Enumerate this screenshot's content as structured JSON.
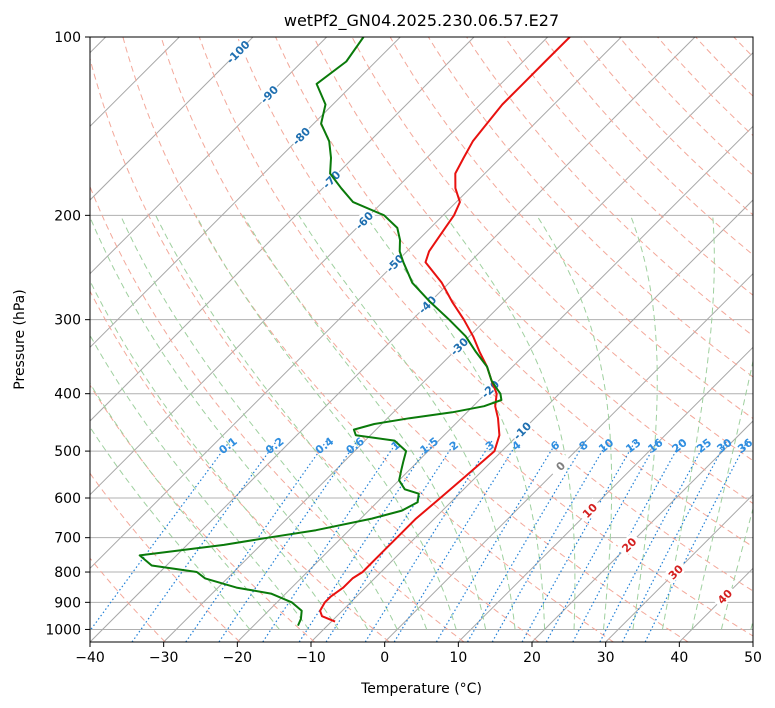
{
  "chart_data": {
    "type": "line",
    "title": "wetPf2_GN04.2025.230.06.57.E27",
    "xlabel": "Temperature (°C)",
    "ylabel": "Pressure (hPa)",
    "xlim": [
      -40,
      50
    ],
    "ylim": [
      1050,
      100
    ],
    "y_scale": "log",
    "grid": true,
    "x_ticks": [
      -40,
      -30,
      -20,
      -10,
      0,
      10,
      20,
      30,
      40,
      50
    ],
    "y_ticks": [
      100,
      200,
      300,
      400,
      500,
      600,
      700,
      800,
      900,
      1000
    ],
    "isotherm_labels": [
      "-100",
      "-90",
      "-80",
      "-70",
      "-60",
      "-50",
      "-40",
      "-30",
      "-20",
      "-10",
      "0",
      "10",
      "20",
      "30",
      "40"
    ],
    "mixing_ratio_labels": [
      "0.1",
      "0.2",
      "0.4",
      "0.6",
      "1",
      "1.5",
      "2",
      "3",
      "4",
      "6",
      "8",
      "10",
      "13",
      "16",
      "20",
      "25",
      "30",
      "36"
    ],
    "series": [
      {
        "color": "#e8110f",
        "pressure": [
          970,
          950,
          930,
          900,
          880,
          850,
          820,
          800,
          760,
          700,
          650,
          600,
          550,
          500,
          470,
          440,
          420,
          400,
          380,
          360,
          340,
          320,
          300,
          280,
          260,
          240,
          230,
          220,
          210,
          200,
          190,
          180,
          170,
          160,
          150,
          140,
          130,
          120,
          110,
          100
        ],
        "temperature": [
          -9.5,
          -12,
          -13,
          -13.5,
          -13.5,
          -13,
          -13,
          -12.5,
          -12.5,
          -12.5,
          -12.5,
          -12,
          -11.5,
          -11,
          -12.5,
          -15,
          -17,
          -18.5,
          -21,
          -23.5,
          -26.5,
          -29.5,
          -33,
          -37,
          -41,
          -46,
          -47,
          -47.5,
          -48,
          -48.5,
          -49.5,
          -52,
          -54,
          -55,
          -56,
          -56.5,
          -57,
          -57,
          -57,
          -57
        ]
      },
      {
        "color": "#0a7a0a",
        "pressure": [
          985,
          960,
          930,
          900,
          870,
          850,
          820,
          800,
          780,
          750,
          720,
          700,
          680,
          650,
          630,
          610,
          600,
          590,
          580,
          560,
          540,
          520,
          500,
          480,
          470,
          460,
          450,
          440,
          430,
          420,
          410,
          400,
          390,
          380,
          360,
          340,
          320,
          300,
          280,
          260,
          240,
          230,
          220,
          210,
          200,
          190,
          180,
          170,
          160,
          150,
          140,
          130,
          120,
          110,
          100
        ],
        "temperature": [
          -14,
          -14.5,
          -15.5,
          -18,
          -22,
          -27.5,
          -33,
          -35,
          -42,
          -45,
          -35,
          -30,
          -24.5,
          -18.5,
          -15.5,
          -14.5,
          -15,
          -15.5,
          -18,
          -20,
          -21,
          -22,
          -23,
          -26,
          -32,
          -33,
          -31,
          -27,
          -22,
          -18.5,
          -17,
          -18,
          -19.5,
          -21,
          -23.5,
          -27,
          -30.5,
          -35,
          -40,
          -45,
          -49,
          -51,
          -52.5,
          -54.5,
          -58,
          -64,
          -67.5,
          -71,
          -73,
          -75.5,
          -79,
          -81,
          -85,
          -84,
          -85
        ]
      }
    ]
  }
}
